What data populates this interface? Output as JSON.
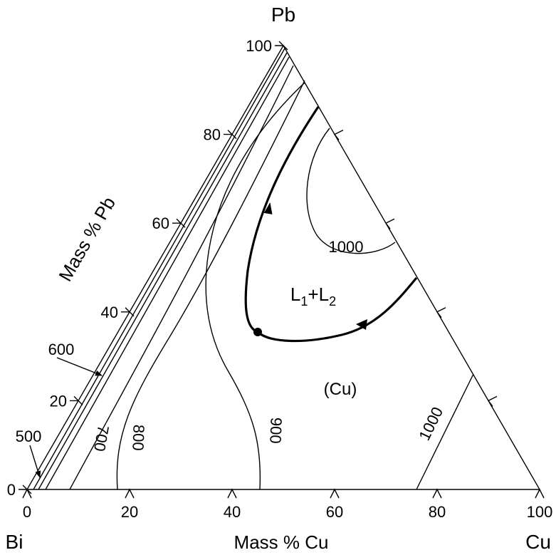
{
  "corners": {
    "top": "Pb",
    "left": "Bi",
    "right": "Cu"
  },
  "axes": {
    "bottom": {
      "title": "Mass % Cu",
      "ticks": [
        0,
        20,
        40,
        60,
        80,
        100
      ]
    },
    "left": {
      "title": "Mass % Pb",
      "ticks": [
        0,
        20,
        40,
        60,
        80,
        100
      ]
    }
  },
  "isotherms": {
    "t500": "500",
    "t600": "600",
    "t700": "700",
    "t800": "800",
    "t900": "900",
    "t1000_upper": "1000",
    "t1000_lower": "1000"
  },
  "regions": {
    "liquid_parts": [
      "L",
      "1",
      "+L",
      "2"
    ],
    "solid": "(Cu)"
  }
}
